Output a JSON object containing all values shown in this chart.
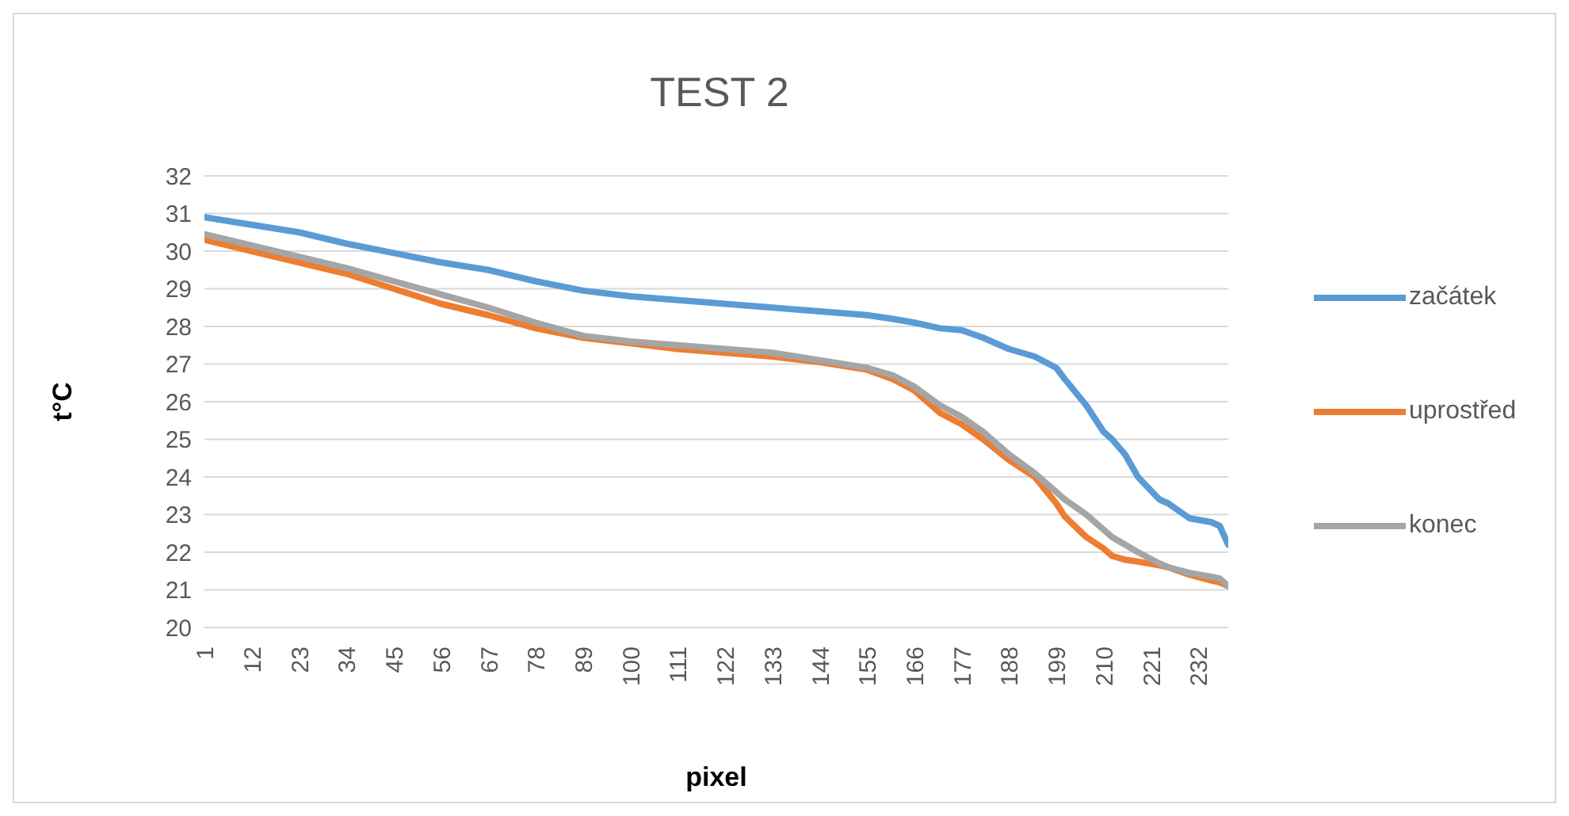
{
  "chart_data": {
    "type": "line",
    "title": "TEST 2",
    "xlabel": "pixel",
    "ylabel": "t°C",
    "x": [
      1,
      12,
      23,
      34,
      45,
      56,
      67,
      78,
      89,
      100,
      111,
      122,
      133,
      144,
      155,
      161,
      166,
      172,
      177,
      182,
      188,
      194,
      199,
      201,
      206,
      210,
      212,
      215,
      218,
      223,
      225,
      230,
      235,
      237,
      239
    ],
    "series": [
      {
        "name": "začátek",
        "color": "#5b9bd5",
        "values": [
          30.9,
          30.7,
          30.5,
          30.2,
          29.95,
          29.7,
          29.5,
          29.2,
          28.95,
          28.8,
          28.7,
          28.6,
          28.5,
          28.4,
          28.3,
          28.2,
          28.1,
          27.95,
          27.9,
          27.7,
          27.4,
          27.2,
          26.9,
          26.6,
          25.9,
          25.2,
          25.0,
          24.6,
          24.0,
          23.4,
          23.3,
          22.9,
          22.8,
          22.7,
          22.2
        ]
      },
      {
        "name": "uprostřed",
        "color": "#ed7d31",
        "values": [
          30.3,
          30.0,
          29.7,
          29.4,
          29.0,
          28.6,
          28.3,
          27.95,
          27.7,
          27.55,
          27.4,
          27.3,
          27.2,
          27.05,
          26.85,
          26.6,
          26.3,
          25.7,
          25.4,
          25.0,
          24.45,
          24.0,
          23.3,
          22.95,
          22.4,
          22.1,
          21.9,
          21.8,
          21.75,
          21.65,
          21.6,
          21.4,
          21.25,
          21.2,
          21.1
        ]
      },
      {
        "name": "konec",
        "color": "#a5a5a5",
        "values": [
          30.45,
          30.15,
          29.85,
          29.55,
          29.2,
          28.85,
          28.5,
          28.1,
          27.75,
          27.6,
          27.5,
          27.4,
          27.3,
          27.1,
          26.9,
          26.7,
          26.4,
          25.9,
          25.6,
          25.2,
          24.6,
          24.1,
          23.6,
          23.4,
          23.0,
          22.6,
          22.4,
          22.2,
          22.0,
          21.7,
          21.6,
          21.45,
          21.35,
          21.3,
          21.1
        ]
      }
    ],
    "xlim": [
      1,
      239
    ],
    "xticks": [
      1,
      12,
      23,
      34,
      45,
      56,
      67,
      78,
      89,
      100,
      111,
      122,
      133,
      144,
      155,
      166,
      177,
      188,
      199,
      210,
      221,
      232
    ],
    "ylim": [
      20,
      32
    ],
    "yticks": [
      20,
      21,
      22,
      23,
      24,
      25,
      26,
      27,
      28,
      29,
      30,
      31,
      32
    ],
    "grid": "y",
    "legend": "right",
    "marker": "none",
    "line_style": "solid"
  }
}
